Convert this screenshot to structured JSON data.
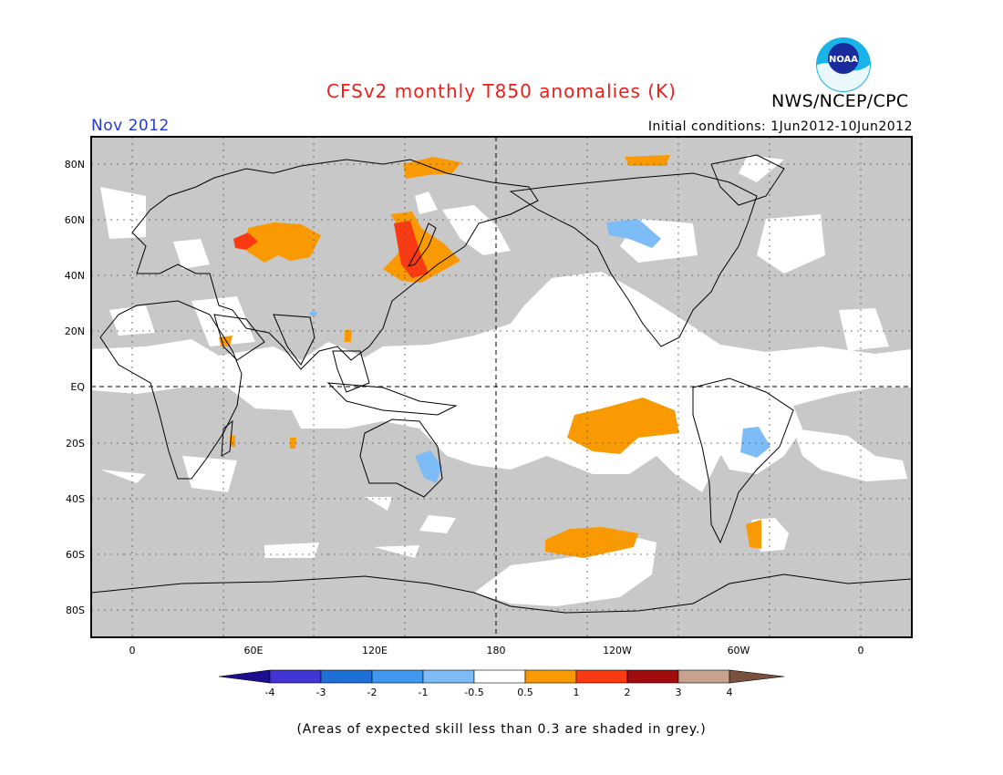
{
  "header": {
    "title": "CFSv2 monthly T850 anomalies (K)",
    "title_color": "#e8201c",
    "period": "Nov 2012",
    "period_color": "#2438d8",
    "initial_conditions": "Initial conditions: 1Jun2012-10Jun2012",
    "agency": "NWS/NCEP/CPC",
    "logo_text": "NOAA"
  },
  "map": {
    "projection": "cylindrical equidistant",
    "lon_ticks": [
      "0",
      "60E",
      "120E",
      "180",
      "120W",
      "60W",
      "0"
    ],
    "lat_ticks": [
      "80N",
      "60N",
      "40N",
      "20N",
      "EQ",
      "20S",
      "40S",
      "60S",
      "80S"
    ],
    "grey_mask_color": "#c8c8c8",
    "land_outline_color": "#000000"
  },
  "legend": {
    "labels": [
      "-4",
      "-3",
      "-2",
      "-1",
      "-0.5",
      "0.5",
      "1",
      "2",
      "3",
      "4"
    ],
    "colors": [
      "#1b0f8f",
      "#4135d6",
      "#1e6fd8",
      "#3f97ee",
      "#7dbcf6",
      "#ffffff",
      "#f99a02",
      "#f93a12",
      "#a10d0d",
      "#c7a28e",
      "#7a5040"
    ]
  },
  "footer": {
    "note": "(Areas of expected skill less than 0.3 are shaded in grey.)"
  }
}
